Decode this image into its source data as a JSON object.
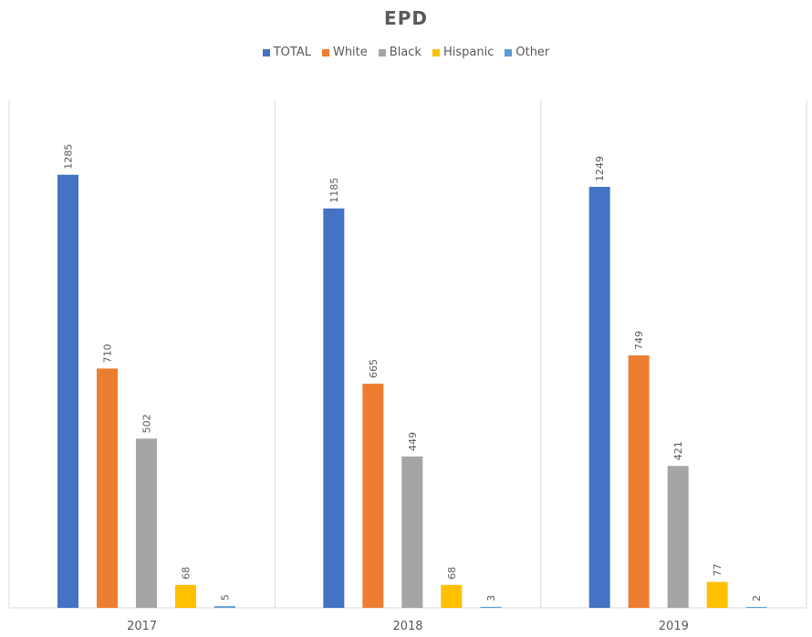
{
  "chart_data": {
    "type": "bar",
    "title": "EPD",
    "categories": [
      "2017",
      "2018",
      "2019"
    ],
    "series": [
      {
        "name": "TOTAL",
        "color": "#4472C4",
        "values": [
          1285,
          1185,
          1249
        ]
      },
      {
        "name": "White",
        "color": "#ED7D31",
        "values": [
          710,
          665,
          749
        ]
      },
      {
        "name": "Black",
        "color": "#A5A5A5",
        "values": [
          502,
          449,
          421
        ]
      },
      {
        "name": "Hispanic",
        "color": "#FFC000",
        "values": [
          68,
          68,
          77
        ]
      },
      {
        "name": "Other",
        "color": "#5B9BD5",
        "values": [
          5,
          3,
          2
        ]
      }
    ],
    "ylim": [
      0,
      1500
    ],
    "legend": "top",
    "grid": false,
    "data_labels": true
  }
}
